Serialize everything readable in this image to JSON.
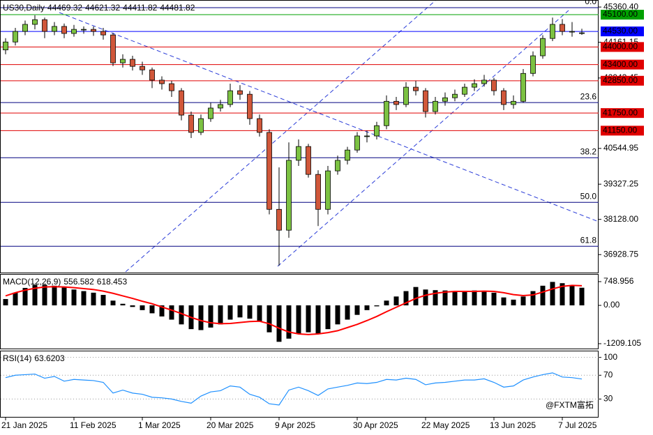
{
  "chart_data": [
    {
      "type": "candlestick",
      "symbol": "US30,Daily",
      "categories": [
        "21 Jan 2025",
        null,
        null,
        null,
        null,
        null,
        null,
        "11 Feb 2025",
        null,
        null,
        null,
        null,
        null,
        null,
        "1 Mar 2025",
        null,
        null,
        null,
        null,
        null,
        null,
        "20 Mar 2025",
        null,
        null,
        null,
        null,
        null,
        null,
        "9 Apr 2025",
        null,
        null,
        null,
        null,
        null,
        null,
        null,
        "30 Apr 2025",
        null,
        null,
        null,
        null,
        null,
        null,
        "22 May 2025",
        null,
        null,
        null,
        null,
        null,
        null,
        "13 Jun 2025",
        null,
        null,
        null,
        null,
        null,
        null,
        "7 Jul 2025",
        null,
        null
      ],
      "open": [
        43900,
        44170,
        44530,
        44770,
        44930,
        44530,
        44700,
        44460,
        44600,
        44600,
        44530,
        44410,
        43460,
        43580,
        43340,
        43220,
        42870,
        42750,
        42510,
        41680,
        41090,
        41560,
        41920,
        42040,
        42510,
        42390,
        41560,
        41090,
        38470,
        37760,
        40140,
        40610,
        39660,
        38470,
        39780,
        40140,
        40490,
        40970,
        40970,
        41320,
        42150,
        42040,
        42630,
        42510,
        41800,
        42150,
        42270,
        42390,
        42630,
        42750,
        42870,
        42510,
        42040,
        42150,
        43100,
        43700,
        44290,
        44770,
        44530,
        44469.32
      ],
      "high": [
        44300,
        44650,
        44900,
        45080,
        45000,
        44850,
        44800,
        44750,
        44700,
        44700,
        44650,
        44480,
        43750,
        43700,
        43500,
        43300,
        43000,
        42850,
        42600,
        41800,
        41700,
        42100,
        42200,
        42750,
        42700,
        42500,
        41700,
        41200,
        39900,
        40750,
        40850,
        40700,
        39800,
        39950,
        40300,
        40600,
        41100,
        41150,
        41450,
        42350,
        42300,
        42800,
        42850,
        42600,
        42300,
        42450,
        42550,
        42750,
        42900,
        43050,
        42950,
        42600,
        42350,
        43250,
        43850,
        44400,
        45000,
        44950,
        44850,
        44621.32
      ],
      "low": [
        43750,
        44050,
        44400,
        44600,
        44300,
        44400,
        44300,
        44350,
        44450,
        44380,
        44250,
        43350,
        43300,
        43200,
        43050,
        42600,
        42550,
        42300,
        41500,
        40900,
        41000,
        41450,
        41800,
        41950,
        42200,
        41350,
        40950,
        38300,
        36550,
        37500,
        39950,
        39550,
        37900,
        38300,
        39650,
        40000,
        40400,
        40750,
        40850,
        41200,
        41850,
        41950,
        42350,
        41600,
        41700,
        42000,
        42150,
        42300,
        42500,
        42650,
        42350,
        41850,
        41900,
        42100,
        43000,
        43600,
        44200,
        44400,
        44350,
        44411.82
      ],
      "close": [
        44170,
        44530,
        44770,
        44930,
        44530,
        44700,
        44460,
        44600,
        44600,
        44530,
        44410,
        43460,
        43580,
        43340,
        43220,
        42870,
        42750,
        42510,
        41680,
        41090,
        41560,
        41920,
        42040,
        42510,
        42390,
        41560,
        41090,
        38470,
        37760,
        40140,
        40610,
        39660,
        38470,
        39780,
        40140,
        40490,
        40970,
        40970,
        41320,
        42150,
        42040,
        42630,
        42510,
        41800,
        42150,
        42270,
        42390,
        42630,
        42750,
        42870,
        42510,
        42040,
        42150,
        43100,
        43700,
        44290,
        44770,
        44530,
        44530,
        44481.82
      ],
      "bull_color": "#7cc242",
      "bear_color": "#d0573a",
      "ylim": [
        36340,
        45600
      ],
      "yticks": [
        {
          "value": 45360.4,
          "label": "45360.40"
        },
        44161.15,
        42943.45,
        40544.95,
        39327.25,
        {
          "value": 38128,
          "label": "38128.00"
        },
        36928.75
      ],
      "levels": [
        {
          "value": 45100,
          "label": "45100.00",
          "color": "#00a000"
        },
        {
          "value": 44530,
          "label": "44530.00",
          "color": "#0000ff"
        },
        {
          "value": 44000,
          "label": "44000.00",
          "color": "#e00000"
        },
        {
          "value": 43400,
          "label": "43400.00",
          "color": "#e00000"
        },
        {
          "value": 42850,
          "label": "42850.00",
          "color": "#e00000"
        },
        {
          "value": 41750,
          "label": "41750.00",
          "color": "#e00000"
        },
        {
          "value": 41150,
          "label": "41150.00",
          "color": "#e00000"
        }
      ],
      "fib_color": "#000080",
      "fib_levels": [
        {
          "label": "0.0",
          "price": 45340
        },
        {
          "label": "23.6",
          "price": 42106
        },
        {
          "label": "38.2",
          "price": 40229
        },
        {
          "label": "50.0",
          "price": 38709
        },
        {
          "label": "61.8",
          "price": 37213
        }
      ]
    },
    {
      "type": "macd",
      "title": "MACD(12,26,9)",
      "histogram": {
        "color": "#000000",
        "values": [
          200,
          400,
          550,
          650,
          650,
          620,
          560,
          500,
          450,
          400,
          330,
          150,
          50,
          -50,
          -150,
          -250,
          -350,
          -450,
          -600,
          -750,
          -780,
          -700,
          -600,
          -450,
          -380,
          -420,
          -500,
          -850,
          -1150,
          -1050,
          -900,
          -850,
          -900,
          -750,
          -600,
          -450,
          -300,
          -150,
          -30,
          150,
          280,
          450,
          580,
          500,
          480,
          470,
          450,
          450,
          470,
          460,
          400,
          250,
          180,
          280,
          450,
          620,
          740,
          700,
          620,
          556.582
        ]
      },
      "signal": {
        "color": "#ff0000",
        "values": [
          300,
          400,
          480,
          540,
          580,
          590,
          580,
          560,
          530,
          500,
          450,
          380,
          300,
          220,
          130,
          50,
          -50,
          -150,
          -260,
          -380,
          -480,
          -550,
          -580,
          -570,
          -540,
          -510,
          -500,
          -580,
          -720,
          -840,
          -900,
          -920,
          -900,
          -860,
          -800,
          -700,
          -600,
          -480,
          -350,
          -200,
          -60,
          80,
          220,
          320,
          380,
          420,
          440,
          440,
          440,
          450,
          440,
          400,
          340,
          310,
          330,
          420,
          520,
          600,
          630,
          618.453
        ]
      },
      "ylim": [
        -1363,
        925
      ],
      "yticks": [
        748.956,
        {
          "value": 0,
          "label": "0.00"
        },
        -1209.105
      ]
    },
    {
      "type": "line",
      "title": "RSI(14)",
      "color": "#1e90ff",
      "values": [
        66,
        70,
        71,
        72,
        65,
        68,
        60,
        63,
        62,
        61,
        58,
        40,
        45,
        40,
        38,
        33,
        32,
        30,
        26,
        23,
        35,
        42,
        44,
        52,
        50,
        38,
        33,
        22,
        20,
        45,
        50,
        44,
        36,
        47,
        50,
        53,
        57,
        56,
        58,
        63,
        62,
        65,
        63,
        54,
        57,
        58,
        60,
        62,
        62,
        64,
        58,
        50,
        52,
        62,
        67,
        71,
        74,
        67,
        66,
        63.6203
      ],
      "ylim": [
        0,
        109
      ],
      "yticks": [
        100,
        70,
        30
      ],
      "grid": true
    }
  ],
  "watermark": "@FXTM富拓"
}
